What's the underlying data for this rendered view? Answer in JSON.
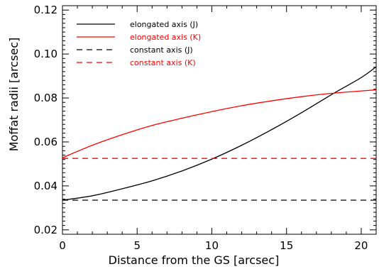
{
  "chart_data": {
    "type": "line",
    "title": "",
    "xlabel": "Distance from the GS [arcsec]",
    "ylabel": "Moffat radii [arcsec]",
    "xlim": [
      0,
      21
    ],
    "ylim": [
      0.018,
      0.122
    ],
    "xticks": [
      0,
      5,
      10,
      15,
      20
    ],
    "xtick_labels": [
      "0",
      "5",
      "10",
      "15",
      "20"
    ],
    "yticks": [
      0.02,
      0.04,
      0.06,
      0.08,
      0.1,
      0.12
    ],
    "ytick_labels": [
      "0.02",
      "0.04",
      "0.06",
      "0.08",
      "0.10",
      "0.12"
    ],
    "grid": false,
    "legend_position": "top-left",
    "series": [
      {
        "name": "elongated axis (J)",
        "color": "#000000",
        "dash": "solid",
        "x": [
          0,
          2,
          4,
          6,
          8,
          10,
          12,
          14,
          16,
          18,
          20,
          21
        ],
        "y": [
          0.0335,
          0.0355,
          0.0387,
          0.0423,
          0.0468,
          0.0522,
          0.0585,
          0.0656,
          0.0733,
          0.0815,
          0.0893,
          0.0942
        ]
      },
      {
        "name": "elongated axis (K)",
        "color": "#ff0000",
        "dash": "solid",
        "x": [
          0,
          2,
          4,
          6,
          8,
          10,
          12,
          14,
          16,
          18,
          20,
          21
        ],
        "y": [
          0.0528,
          0.0585,
          0.0633,
          0.0675,
          0.0708,
          0.0738,
          0.0765,
          0.0787,
          0.0806,
          0.0821,
          0.0832,
          0.0837
        ]
      },
      {
        "name": "constant axis (J)",
        "color": "#000000",
        "dash": "dashed",
        "x": [
          0,
          21
        ],
        "y": [
          0.0335,
          0.0335
        ]
      },
      {
        "name": "constant axis (K)",
        "color": "#ff0000",
        "dash": "dashed",
        "x": [
          0,
          21
        ],
        "y": [
          0.0525,
          0.0525
        ]
      }
    ]
  }
}
